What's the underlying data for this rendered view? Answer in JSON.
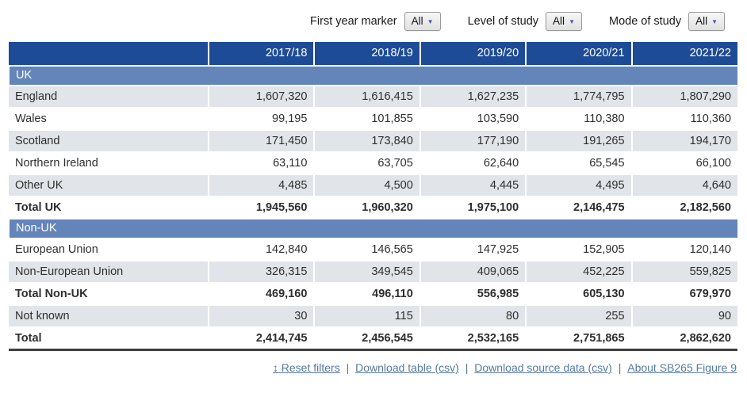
{
  "filters": [
    {
      "label": "First year marker",
      "value": "All"
    },
    {
      "label": "Level of study",
      "value": "All"
    },
    {
      "label": "Mode of study",
      "value": "All"
    }
  ],
  "table": {
    "columns": [
      "2017/18",
      "2018/19",
      "2019/20",
      "2020/21",
      "2021/22"
    ],
    "rows": [
      {
        "type": "section",
        "label": "UK"
      },
      {
        "type": "data",
        "label": "England",
        "striped": true,
        "values": [
          "1,607,320",
          "1,616,415",
          "1,627,235",
          "1,774,795",
          "1,807,290"
        ]
      },
      {
        "type": "data",
        "label": "Wales",
        "striped": false,
        "values": [
          "99,195",
          "101,855",
          "103,590",
          "110,380",
          "110,360"
        ]
      },
      {
        "type": "data",
        "label": "Scotland",
        "striped": true,
        "values": [
          "171,450",
          "173,840",
          "177,190",
          "191,265",
          "194,170"
        ]
      },
      {
        "type": "data",
        "label": "Northern Ireland",
        "striped": false,
        "values": [
          "63,110",
          "63,705",
          "62,640",
          "65,545",
          "66,100"
        ]
      },
      {
        "type": "data",
        "label": "Other UK",
        "striped": true,
        "values": [
          "4,485",
          "4,500",
          "4,445",
          "4,495",
          "4,640"
        ]
      },
      {
        "type": "total",
        "label": "Total UK",
        "striped": false,
        "values": [
          "1,945,560",
          "1,960,320",
          "1,975,100",
          "2,146,475",
          "2,182,560"
        ]
      },
      {
        "type": "section",
        "label": "Non-UK"
      },
      {
        "type": "data",
        "label": "European Union",
        "striped": false,
        "values": [
          "142,840",
          "146,565",
          "147,925",
          "152,905",
          "120,140"
        ]
      },
      {
        "type": "data",
        "label": "Non-European Union",
        "striped": true,
        "values": [
          "326,315",
          "349,545",
          "409,065",
          "452,225",
          "559,825"
        ]
      },
      {
        "type": "total",
        "label": "Total Non-UK",
        "striped": false,
        "values": [
          "469,160",
          "496,110",
          "556,985",
          "605,130",
          "679,970"
        ]
      },
      {
        "type": "data",
        "label": "Not known",
        "striped": true,
        "values": [
          "30",
          "115",
          "80",
          "255",
          "90"
        ]
      },
      {
        "type": "grand_total",
        "label": "Total",
        "striped": false,
        "values": [
          "2,414,745",
          "2,456,545",
          "2,532,165",
          "2,751,865",
          "2,862,620"
        ]
      }
    ]
  },
  "footer": {
    "separator": "|",
    "links": [
      {
        "label": "↕ Reset filters"
      },
      {
        "label": "Download table (csv)"
      },
      {
        "label": "Download source data (csv)"
      },
      {
        "label": "About SB265 Figure 9"
      }
    ]
  },
  "colors": {
    "header_bg": "#1e4b96",
    "section_bg": "#6485ba",
    "stripe_bg": "#e1e5e9",
    "link": "#567a9e",
    "dropdown_arrow": "#4a5a9a",
    "dark_border": "#3f3f3f"
  }
}
